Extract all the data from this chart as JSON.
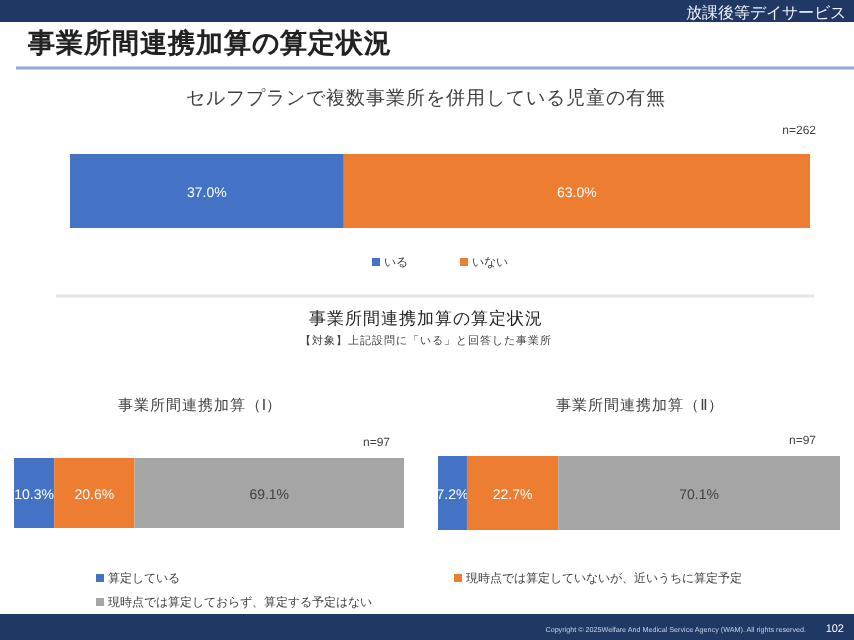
{
  "chart_data": [
    {
      "type": "bar",
      "orientation": "horizontal",
      "stacked": true,
      "title": "セルフプランで複数事業所を併用している児童の有無",
      "categories": [
        null
      ],
      "series": [
        {
          "name": "いる",
          "color": "#4472c4",
          "values": [
            37.0
          ],
          "value_labels": [
            "37.0%"
          ]
        },
        {
          "name": "いない",
          "color": "#ed7d31",
          "values": [
            63.0
          ],
          "value_labels": [
            "63.0%"
          ]
        }
      ],
      "legend": "bottom",
      "annotations": [
        "事業所間連携加算の算定状況",
        "放課後等デイサービス",
        "n=262",
        "Copyright © 2025Welfare And Medical Service Agency (WAM). All rights reserved.",
        "102"
      ]
    },
    {
      "type": "bar",
      "orientation": "horizontal",
      "stacked": true,
      "title": "事業所間連携加算（Ⅰ）",
      "categories": [
        null
      ],
      "series": [
        {
          "name": "算定している",
          "color": "#4472c4",
          "values": [
            10.3
          ],
          "value_labels": [
            "10.3%"
          ]
        },
        {
          "name": "現時点では算定していないが、近いうちに算定予定",
          "color": "#ed7d31",
          "values": [
            20.6
          ],
          "value_labels": [
            "20.6%"
          ]
        },
        {
          "name": "現時点では算定しておらず、算定する予定はない",
          "color": "#a5a5a5",
          "values": [
            69.1
          ],
          "value_labels": [
            "69.1%"
          ]
        }
      ],
      "legend": "bottom",
      "annotations": [
        "事業所間連携加算の算定状況",
        "【対象】上記設問に「いる」と回答した事業所",
        "n=97"
      ]
    },
    {
      "type": "bar",
      "orientation": "horizontal",
      "stacked": true,
      "title": "事業所間連携加算（Ⅱ）",
      "categories": [
        null
      ],
      "series": [
        {
          "color": "#4472c4",
          "values": [
            7.2
          ],
          "value_labels": [
            "7.2%"
          ]
        },
        {
          "color": "#ed7d31",
          "values": [
            22.7
          ],
          "value_labels": [
            "22.7%"
          ]
        },
        {
          "color": "#a5a5a5",
          "values": [
            70.1
          ],
          "value_labels": [
            "70.1%"
          ]
        }
      ],
      "annotations": [
        "n=97"
      ]
    }
  ]
}
